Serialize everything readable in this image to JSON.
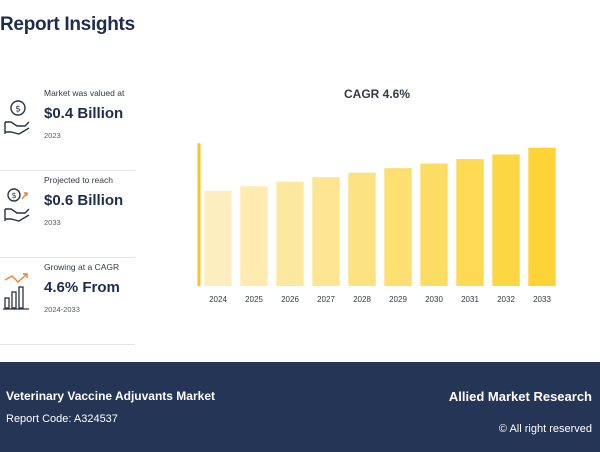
{
  "header": {
    "title": "Report Insights"
  },
  "stats": [
    {
      "caption": "Market was valued at",
      "value": "$0.4 Billion",
      "period": "2023",
      "icon": "money-hand-icon"
    },
    {
      "caption": "Projected to reach",
      "value": "$0.6 Billion",
      "period": "2033",
      "icon": "growth-hand-icon"
    },
    {
      "caption": "Growing at a CAGR",
      "value": "4.6% From",
      "period": "2024-2033",
      "icon": "bar-growth-icon"
    }
  ],
  "chart_data": {
    "type": "bar",
    "title": "CAGR 4.6%",
    "categories": [
      "2024",
      "2025",
      "2026",
      "2027",
      "2028",
      "2029",
      "2030",
      "2031",
      "2032",
      "2033"
    ],
    "values": [
      0.42,
      0.44,
      0.46,
      0.48,
      0.5,
      0.52,
      0.54,
      0.56,
      0.58,
      0.61
    ],
    "xlabel": "",
    "ylabel": "",
    "ylim": [
      0,
      0.75
    ],
    "grid": false,
    "colors": {
      "start": "#fdeebf",
      "end": "#fdd335",
      "axis": "#f7c624"
    }
  },
  "footer": {
    "market_name": "Veterinary Vaccine Adjuvants Market",
    "report_code": "Report Code: A324537",
    "brand": "Allied Market Research",
    "rights": "© All right reserved"
  }
}
